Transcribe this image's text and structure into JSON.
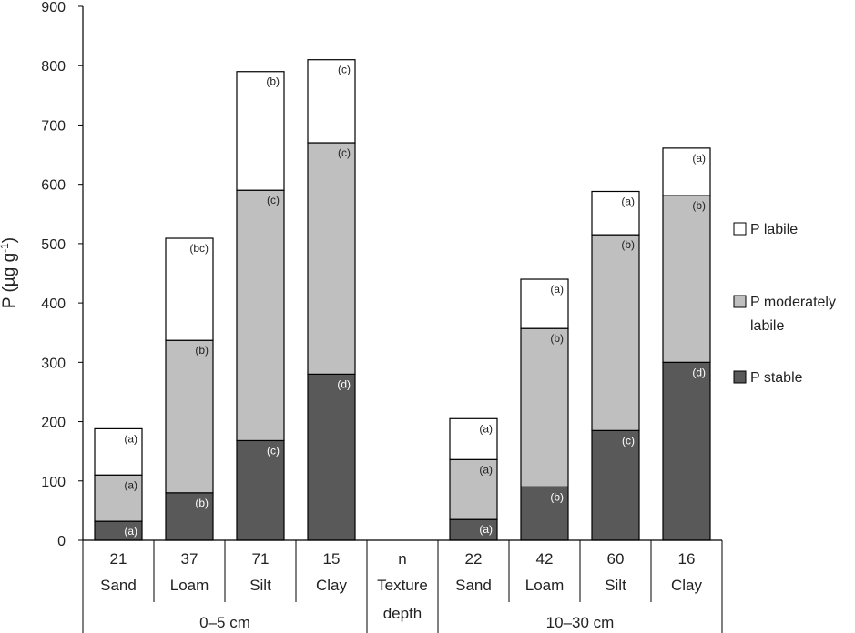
{
  "chart_data": {
    "type": "bar",
    "stacked": true,
    "ylabel": "P (µg g-1)",
    "ylabel_main": "P (µg g",
    "ylabel_sup": "-1",
    "ylabel_close": ")",
    "ylim": [
      0,
      900
    ],
    "yticks": [
      0,
      100,
      200,
      300,
      400,
      500,
      600,
      700,
      800,
      900
    ],
    "group_label_n": "n",
    "group_label_texture": "Texture",
    "group_label_depth": "depth",
    "groups": [
      {
        "label": "0–5 cm"
      },
      {
        "label": "10–30 cm"
      }
    ],
    "categories": [
      {
        "n": "21",
        "texture": "Sand",
        "group": 0
      },
      {
        "n": "37",
        "texture": "Loam",
        "group": 0
      },
      {
        "n": "71",
        "texture": "Silt",
        "group": 0
      },
      {
        "n": "15",
        "texture": "Clay",
        "group": 0
      },
      {
        "n": "22",
        "texture": "Sand",
        "group": 1
      },
      {
        "n": "42",
        "texture": "Loam",
        "group": 1
      },
      {
        "n": "60",
        "texture": "Silt",
        "group": 1
      },
      {
        "n": "16",
        "texture": "Clay",
        "group": 1
      }
    ],
    "series": [
      {
        "name": "P stable",
        "color": "#595959",
        "label_color": "#ffffff",
        "values": [
          32,
          80,
          168,
          280,
          35,
          90,
          185,
          300
        ],
        "letters": [
          "(a)",
          "(b)",
          "(c)",
          "(d)",
          "(a)",
          "(b)",
          "(c)",
          "(d)"
        ]
      },
      {
        "name": "P moderately labile",
        "legend_line1": "P moderately",
        "legend_line2": "labile",
        "color": "#bfbfbf",
        "label_color": "#222222",
        "values": [
          78,
          257,
          422,
          390,
          101,
          267,
          330,
          281
        ],
        "letters": [
          "(a)",
          "(b)",
          "(c)",
          "(c)",
          "(a)",
          "(b)",
          "(b)",
          "(b)"
        ]
      },
      {
        "name": "P labile",
        "color": "#ffffff",
        "label_color": "#222222",
        "values": [
          78,
          172,
          200,
          140,
          69,
          83,
          73,
          80
        ],
        "letters": [
          "(a)",
          "(bc)",
          "(b)",
          "(c)",
          "(a)",
          "(a)",
          "(a)",
          "(a)"
        ]
      }
    ],
    "legend_order": [
      2,
      1,
      0
    ]
  }
}
